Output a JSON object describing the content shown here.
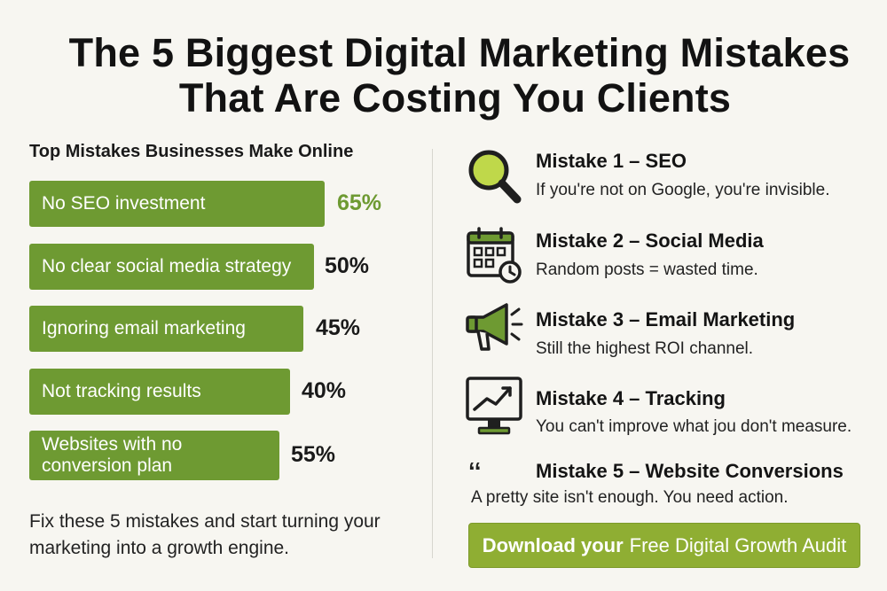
{
  "title": {
    "line1": "The 5 Biggest Digital Marketing Mistakes",
    "line2": "That Are Costing You Clients"
  },
  "chart_data": {
    "type": "bar",
    "title": "Top Mistakes Businesses Make Online",
    "categories": [
      "No SEO investment",
      "No clear social media strategy",
      "Ignoring email marketing",
      "Not tracking results",
      "Websites with no conversion plan"
    ],
    "values": [
      65,
      50,
      45,
      40,
      55
    ],
    "value_labels": [
      "65%",
      "50%",
      "45%",
      "40%",
      "55%"
    ],
    "orientation": "horizontal",
    "colors": {
      "bar": "#6e9a32",
      "highlight_value": "#6e9a32",
      "value": "#1a1a1a"
    }
  },
  "footer_text": "Fix these 5 mistakes and start turning your marketing into a growth engine.",
  "mistakes": [
    {
      "title": "Mistake 1 – SEO",
      "desc": "If you're not on Google, you're invisible.",
      "icon": "magnifier-icon"
    },
    {
      "title": "Mistake 2 – Social Media",
      "desc": "Random posts = wasted time.",
      "icon": "calendar-clock-icon"
    },
    {
      "title": "Mistake 3 – Email Marketing",
      "desc": "Still the highest ROI channel.",
      "icon": "megaphone-icon"
    },
    {
      "title": "Mistake 4 – Tracking",
      "desc": "You can't improve what jou don't measure.",
      "icon": "monitor-chart-icon"
    },
    {
      "title": "Mistake 5 – Website Conversions",
      "desc": "A pretty site isn't enough. You need action.",
      "icon": "quote-icon"
    }
  ],
  "quote_glyph": "‘‘",
  "cta": {
    "bold": "Download your",
    "rest": "Free Digital Growth Audit"
  },
  "colors": {
    "accent": "#6e9a32",
    "cta": "#8fae33",
    "background": "#f7f6f1"
  }
}
